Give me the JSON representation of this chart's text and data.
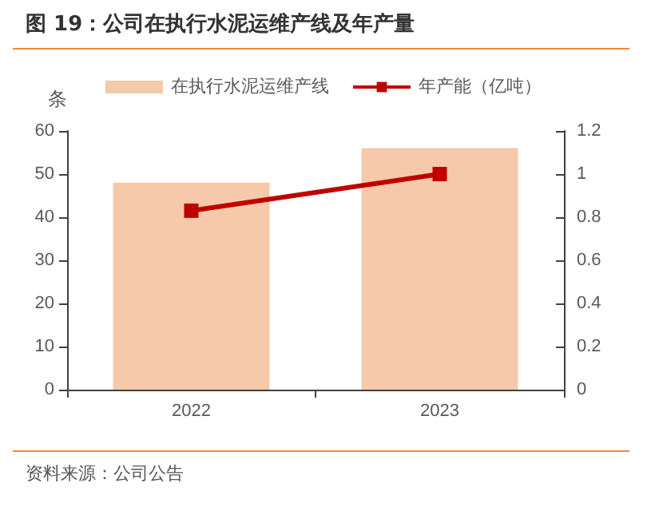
{
  "chart_data": {
    "type": "bar",
    "title": "图 19：公司在执行水泥运维产线及年产量",
    "ylabel": "条",
    "categories": [
      "2022",
      "2023"
    ],
    "series": [
      {
        "name": "在执行水泥运维产线",
        "color": "#f5c9a9",
        "values": [
          48,
          56
        ]
      },
      {
        "name": "年产能（亿吨）",
        "type": "line",
        "axis": "y2",
        "color": "#c00000",
        "values": [
          0.83,
          1.0
        ]
      }
    ],
    "ylim": [
      0,
      60
    ],
    "yticks": [
      0,
      10,
      20,
      30,
      40,
      50,
      60
    ],
    "y2lim": [
      0,
      1.2
    ],
    "y2ticks": [
      0,
      0.2,
      0.4,
      0.6,
      0.8,
      1,
      1.2
    ],
    "grid": false,
    "legend": "top",
    "marker": "square",
    "line_style": "solid",
    "annotations": [
      "资料来源：公司公告"
    ]
  }
}
